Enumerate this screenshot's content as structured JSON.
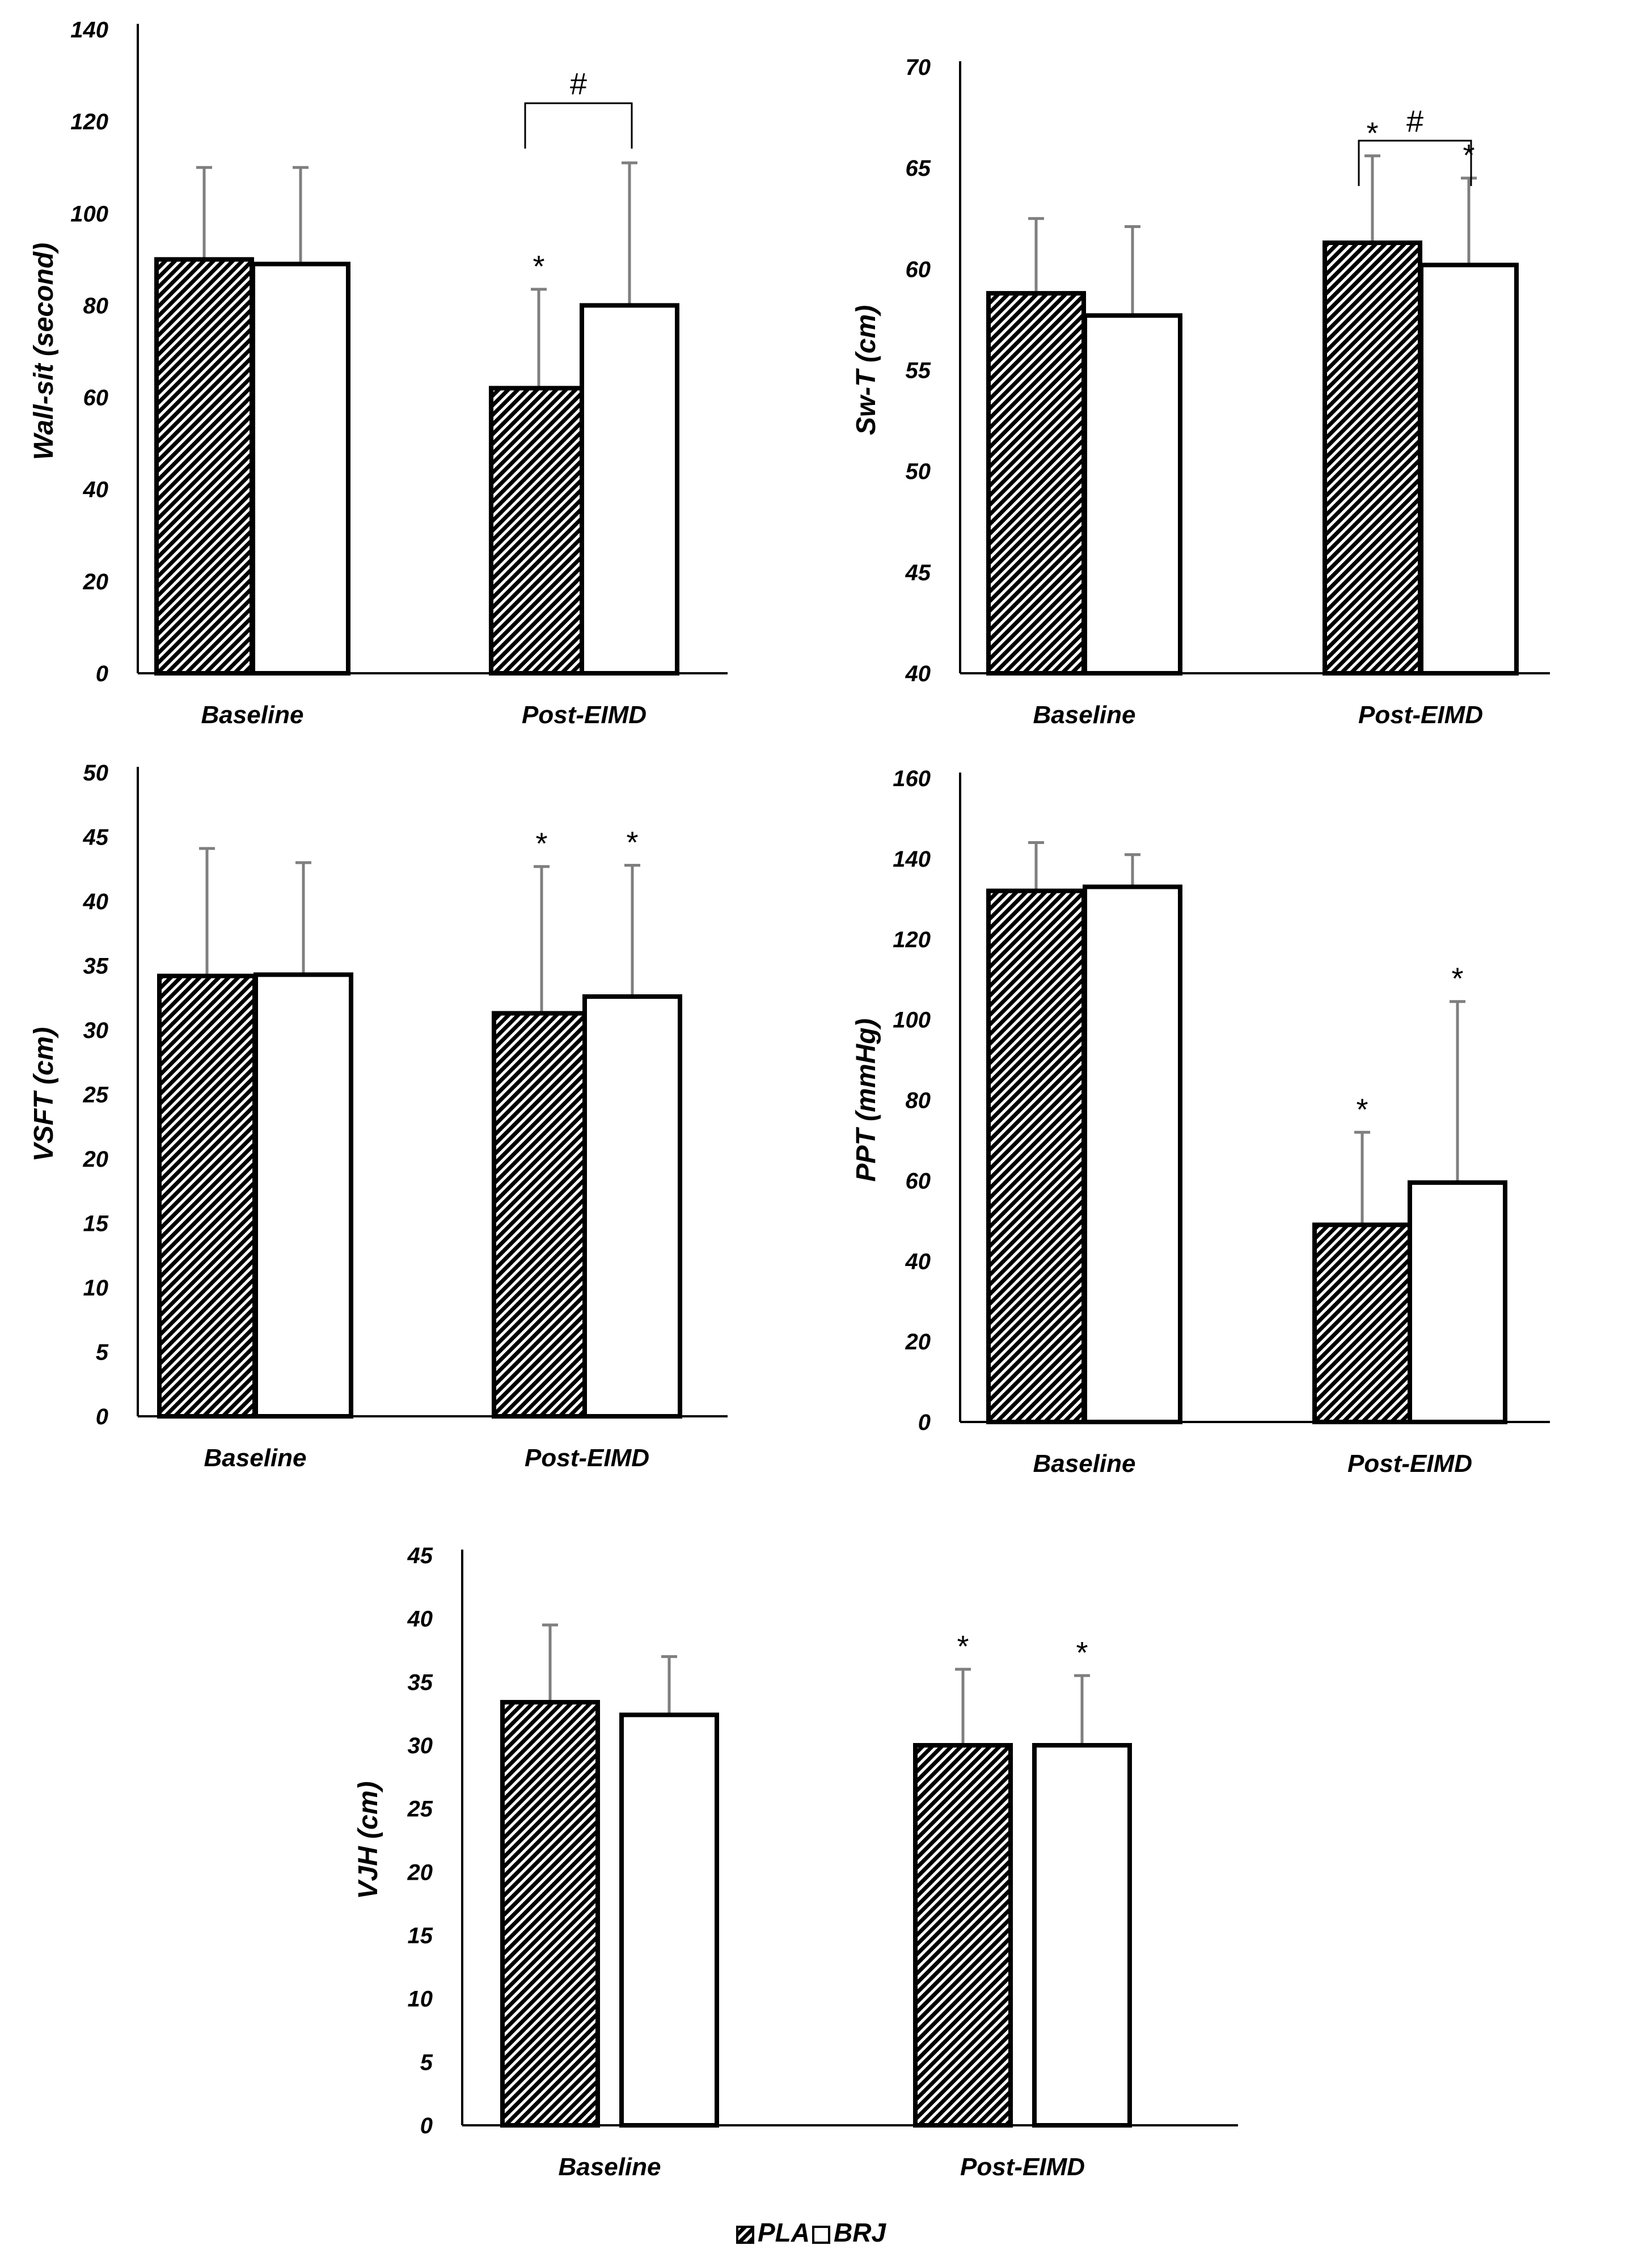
{
  "colors": {
    "axis": "#000000",
    "error_bar": "#7f7f7f",
    "pla_fill": "hatched-black",
    "brj_fill": "#ffffff"
  },
  "legend": {
    "entries": [
      {
        "name": "PLA",
        "icon": "hatched-square-icon"
      },
      {
        "name": "BRJ",
        "icon": "open-square-icon"
      }
    ]
  },
  "chart_data": [
    {
      "id": "wall-sit",
      "type": "bar",
      "title": "",
      "xlabel": "",
      "ylabel": "Wall-sit (second)",
      "ylim": [
        0,
        140
      ],
      "yticks": [
        0,
        20,
        40,
        60,
        80,
        100,
        120,
        140
      ],
      "categories": [
        "Baseline",
        "Post-EIMD"
      ],
      "series": [
        {
          "name": "PLA",
          "values": [
            90,
            62
          ],
          "errors": [
            20,
            21.5
          ],
          "stars": [
            false,
            true
          ]
        },
        {
          "name": "BRJ",
          "values": [
            89,
            80
          ],
          "errors": [
            21,
            31
          ],
          "stars": [
            false,
            false
          ]
        }
      ],
      "brackets": [
        {
          "category": 1,
          "label": "#"
        }
      ],
      "star_label": "*"
    },
    {
      "id": "sw-t",
      "type": "bar",
      "title": "",
      "xlabel": "",
      "ylabel": "Sw-T (cm)",
      "ylim": [
        40,
        70
      ],
      "yticks": [
        40,
        45,
        50,
        55,
        60,
        65,
        70
      ],
      "categories": [
        "Baseline",
        "Post-EIMD"
      ],
      "series": [
        {
          "name": "PLA",
          "values": [
            58.8,
            61.3
          ],
          "errors": [
            3.7,
            4.3
          ],
          "stars": [
            false,
            true
          ]
        },
        {
          "name": "BRJ",
          "values": [
            57.7,
            60.2
          ],
          "errors": [
            4.4,
            4.3
          ],
          "stars": [
            false,
            true
          ]
        }
      ],
      "brackets": [
        {
          "category": 1,
          "label": "#"
        }
      ],
      "star_label": "*"
    },
    {
      "id": "vsft",
      "type": "bar",
      "title": "",
      "xlabel": "",
      "ylabel": "VSFT (cm)",
      "ylim": [
        0,
        50
      ],
      "yticks": [
        0,
        5,
        10,
        15,
        20,
        25,
        30,
        35,
        40,
        45,
        50
      ],
      "categories": [
        "Baseline",
        "Post-EIMD"
      ],
      "series": [
        {
          "name": "PLA",
          "values": [
            34.2,
            31.3
          ],
          "errors": [
            9.9,
            11.4
          ],
          "stars": [
            false,
            true
          ]
        },
        {
          "name": "BRJ",
          "values": [
            34.3,
            32.6
          ],
          "errors": [
            8.7,
            10.2
          ],
          "stars": [
            false,
            true
          ]
        }
      ],
      "brackets": [],
      "star_label": "*"
    },
    {
      "id": "ppt",
      "type": "bar",
      "title": "",
      "xlabel": "",
      "ylabel": "PPT (mmHg)",
      "ylim": [
        0,
        160
      ],
      "yticks": [
        0,
        20,
        40,
        60,
        80,
        100,
        120,
        140,
        160
      ],
      "categories": [
        "Baseline",
        "Post-EIMD"
      ],
      "series": [
        {
          "name": "PLA",
          "values": [
            132,
            49
          ],
          "errors": [
            12,
            23
          ],
          "stars": [
            false,
            true
          ]
        },
        {
          "name": "BRJ",
          "values": [
            133,
            59.5
          ],
          "errors": [
            8,
            45
          ],
          "stars": [
            false,
            true
          ]
        }
      ],
      "brackets": [],
      "star_label": "*"
    },
    {
      "id": "vjh",
      "type": "bar",
      "title": "",
      "xlabel": "",
      "ylabel": "VJH (cm)",
      "ylim": [
        0,
        45
      ],
      "yticks": [
        0,
        5,
        10,
        15,
        20,
        25,
        30,
        35,
        40,
        45
      ],
      "categories": [
        "Baseline",
        "Post-EIMD"
      ],
      "series": [
        {
          "name": "PLA",
          "values": [
            33.4,
            30
          ],
          "errors": [
            6.1,
            6
          ],
          "stars": [
            false,
            true
          ]
        },
        {
          "name": "BRJ",
          "values": [
            32.4,
            30
          ],
          "errors": [
            4.6,
            5.5
          ],
          "stars": [
            false,
            true
          ]
        }
      ],
      "brackets": [],
      "star_label": "*"
    }
  ]
}
